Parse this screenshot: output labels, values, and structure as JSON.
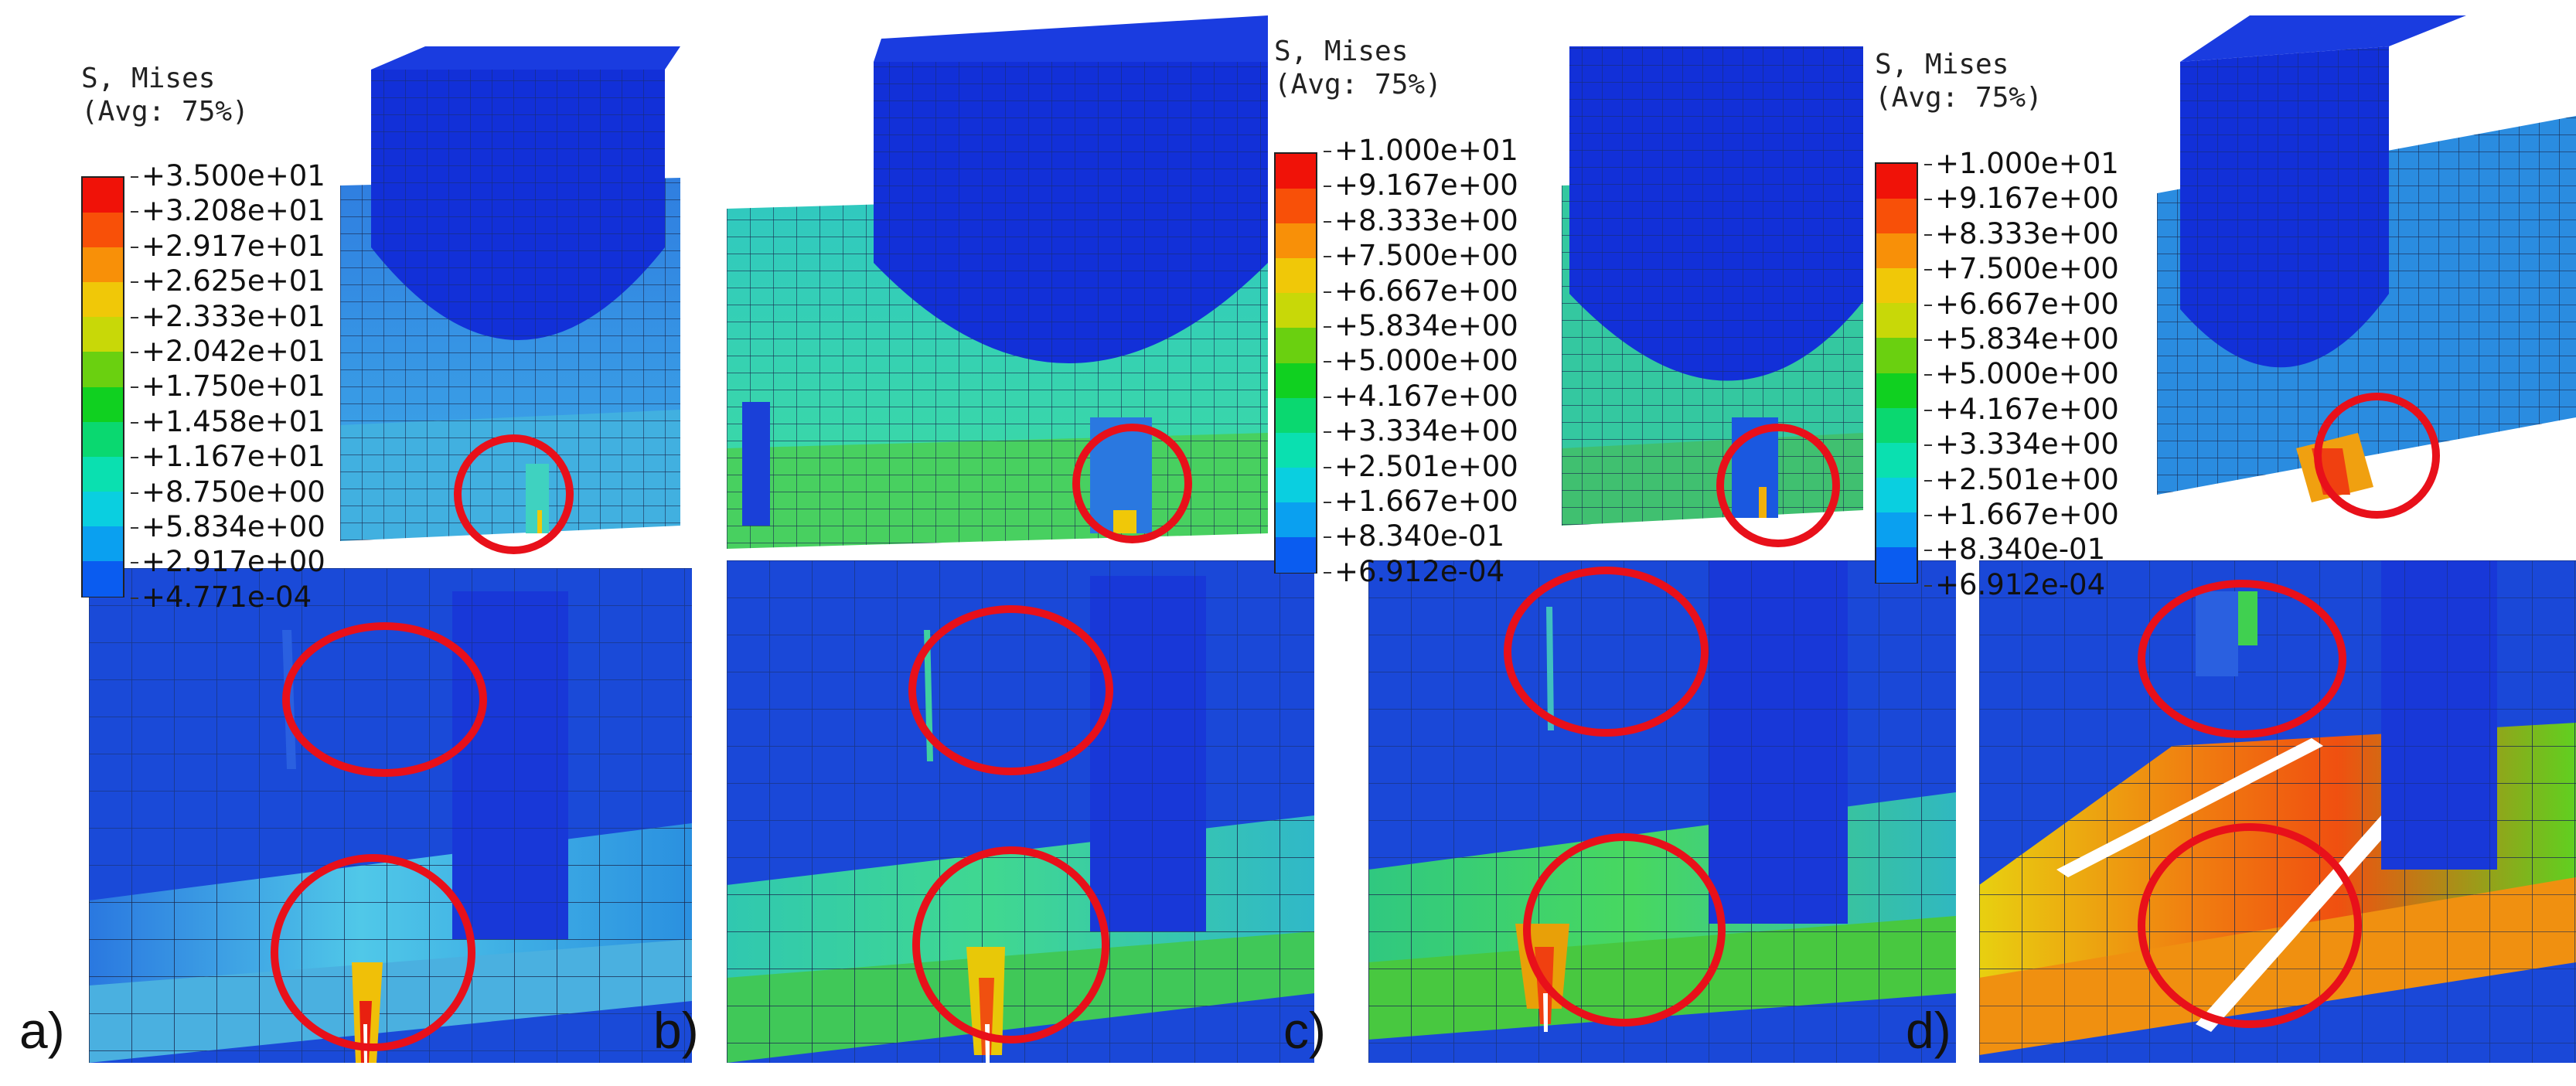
{
  "figure": {
    "legends": [
      {
        "title_line1": "S, Mises",
        "title_line2": "(Avg: 75%)",
        "ticks": [
          "+3.500e+01",
          "+3.208e+01",
          "+2.917e+01",
          "+2.625e+01",
          "+2.333e+01",
          "+2.042e+01",
          "+1.750e+01",
          "+1.458e+01",
          "+1.167e+01",
          "+8.750e+00",
          "+5.834e+00",
          "+2.917e+00",
          "+4.771e-04"
        ]
      },
      {
        "title_line1": "S, Mises",
        "title_line2": "(Avg: 75%)",
        "ticks": [
          "+1.000e+01",
          "+9.167e+00",
          "+8.333e+00",
          "+7.500e+00",
          "+6.667e+00",
          "+5.834e+00",
          "+5.000e+00",
          "+4.167e+00",
          "+3.334e+00",
          "+2.501e+00",
          "+1.667e+00",
          "+8.340e-01",
          "+6.912e-04"
        ]
      },
      {
        "title_line1": "S, Mises",
        "title_line2": "(Avg: 75%)",
        "ticks": [
          "+1.000e+01",
          "+9.167e+00",
          "+8.333e+00",
          "+7.500e+00",
          "+6.667e+00",
          "+5.834e+00",
          "+5.000e+00",
          "+4.167e+00",
          "+3.334e+00",
          "+2.501e+00",
          "+1.667e+00",
          "+8.340e-01",
          "+6.912e-04"
        ]
      }
    ],
    "colormap": [
      "#0a14e8",
      "#0a5cf0",
      "#0aa0f0",
      "#0acfe0",
      "#0ae0b0",
      "#0ad870",
      "#10d020",
      "#6ad010",
      "#c8d808",
      "#f0c808",
      "#f89008",
      "#f85008",
      "#f01208"
    ],
    "panel_labels": [
      "a)",
      "b)",
      "c)",
      "d)"
    ],
    "highlight_color": "#e8101a"
  }
}
